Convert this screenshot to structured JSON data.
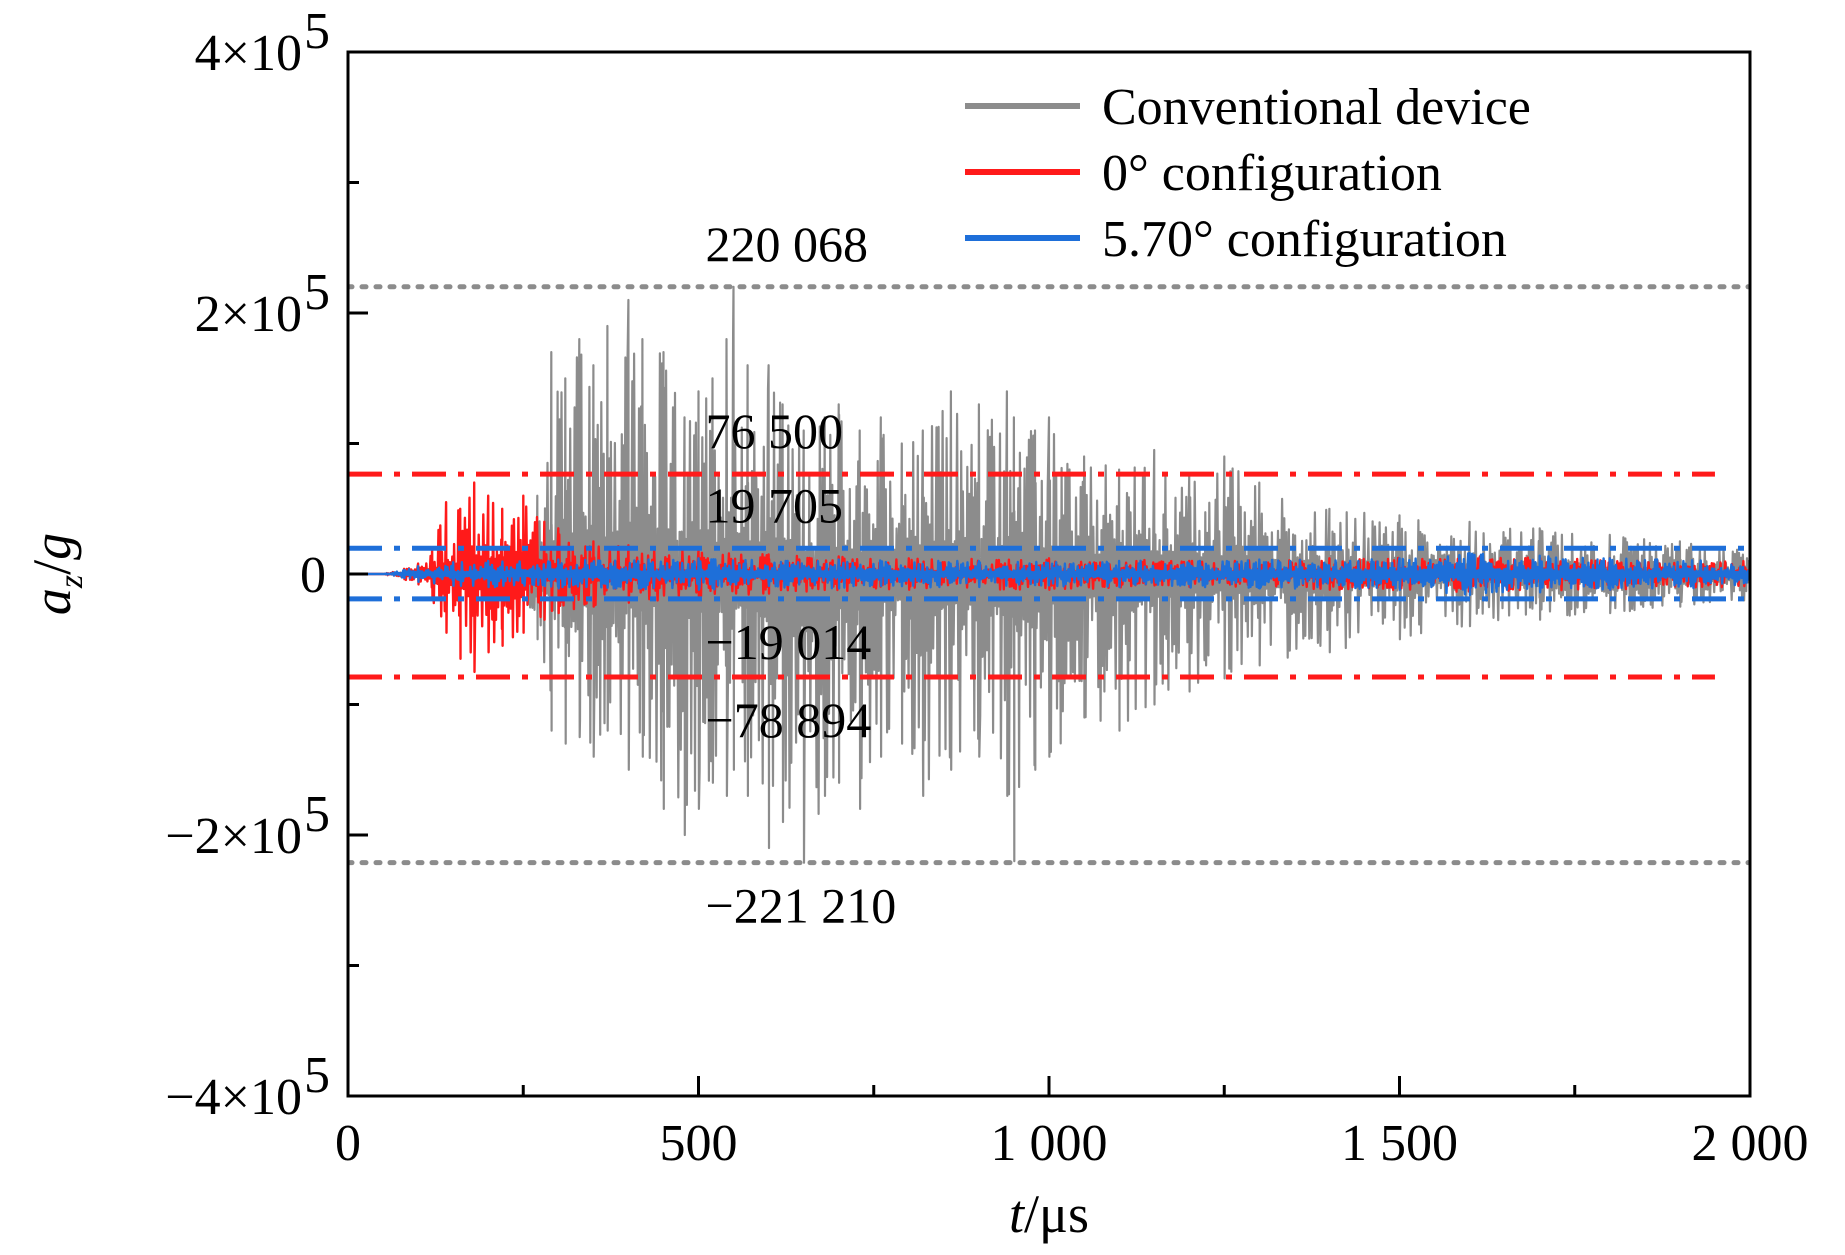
{
  "chart_data": {
    "type": "line",
    "xlabel": {
      "italic": "t",
      "rest": "/μs"
    },
    "ylabel": {
      "a": "a",
      "sub": "z",
      "rest": "/",
      "g": "g"
    },
    "xlim": [
      0,
      2000
    ],
    "ylim": [
      -400000,
      400000
    ],
    "x_ticks": [
      {
        "value": 0,
        "label": "0"
      },
      {
        "value": 500,
        "label": "500"
      },
      {
        "value": 1000,
        "label": "1 000"
      },
      {
        "value": 1500,
        "label": "1 500"
      },
      {
        "value": 2000,
        "label": "2 000"
      }
    ],
    "x_minor_ticks": [
      250,
      750,
      1250,
      1750
    ],
    "y_ticks": [
      {
        "value": 400000,
        "mant": "4×10",
        "exp": "5"
      },
      {
        "value": 200000,
        "mant": "2×10",
        "exp": "5"
      },
      {
        "value": 0,
        "mant": "0",
        "exp": ""
      },
      {
        "value": -200000,
        "mant": "−2×10",
        "exp": "5"
      },
      {
        "value": -400000,
        "mant": "−4×10",
        "exp": "5"
      }
    ],
    "y_minor_ticks": [
      300000,
      100000,
      -100000,
      -300000
    ],
    "series": [
      {
        "name": "Conventional device",
        "color": "#8c8c8c",
        "envelope": [
          [
            0,
            0,
            0
          ],
          [
            50,
            0,
            0
          ],
          [
            100,
            4000,
            -4000
          ],
          [
            150,
            5000,
            -5000
          ],
          [
            200,
            6000,
            -6000
          ],
          [
            250,
            8000,
            -8000
          ],
          [
            270,
            60000,
            -50000
          ],
          [
            290,
            170000,
            -120000
          ],
          [
            310,
            150000,
            -130000
          ],
          [
            330,
            180000,
            -125000
          ],
          [
            350,
            160000,
            -140000
          ],
          [
            370,
            190000,
            -120000
          ],
          [
            400,
            210000,
            -150000
          ],
          [
            420,
            180000,
            -140000
          ],
          [
            450,
            170000,
            -180000
          ],
          [
            480,
            120000,
            -200000
          ],
          [
            500,
            140000,
            -180000
          ],
          [
            520,
            150000,
            -160000
          ],
          [
            540,
            180000,
            -170000
          ],
          [
            550,
            220068,
            -150000
          ],
          [
            570,
            160000,
            -170000
          ],
          [
            600,
            160000,
            -210000
          ],
          [
            620,
            130000,
            -190000
          ],
          [
            650,
            110000,
            -221210
          ],
          [
            680,
            120000,
            -170000
          ],
          [
            700,
            130000,
            -160000
          ],
          [
            730,
            110000,
            -180000
          ],
          [
            760,
            120000,
            -140000
          ],
          [
            790,
            100000,
            -130000
          ],
          [
            820,
            110000,
            -170000
          ],
          [
            860,
            140000,
            -150000
          ],
          [
            900,
            130000,
            -140000
          ],
          [
            940,
            140000,
            -170000
          ],
          [
            950,
            120000,
            -220000
          ],
          [
            980,
            110000,
            -150000
          ],
          [
            1000,
            120000,
            -140000
          ],
          [
            1050,
            90000,
            -110000
          ],
          [
            1100,
            80000,
            -120000
          ],
          [
            1150,
            95000,
            -100000
          ],
          [
            1200,
            75000,
            -90000
          ],
          [
            1250,
            90000,
            -80000
          ],
          [
            1300,
            70000,
            -70000
          ],
          [
            1400,
            50000,
            -60000
          ],
          [
            1500,
            45000,
            -50000
          ],
          [
            1600,
            40000,
            -40000
          ],
          [
            1700,
            35000,
            -35000
          ],
          [
            1800,
            30000,
            -30000
          ],
          [
            1900,
            25000,
            -25000
          ],
          [
            2000,
            20000,
            -20000
          ]
        ]
      },
      {
        "name": "0° configuration",
        "color": "#ff1a1a",
        "envelope": [
          [
            0,
            0,
            0
          ],
          [
            50,
            0,
            0
          ],
          [
            80,
            4000,
            -4000
          ],
          [
            100,
            8000,
            -8000
          ],
          [
            120,
            20000,
            -20000
          ],
          [
            140,
            55000,
            -45000
          ],
          [
            160,
            50000,
            -65000
          ],
          [
            180,
            70000,
            -75000
          ],
          [
            200,
            60000,
            -60000
          ],
          [
            220,
            50000,
            -55000
          ],
          [
            250,
            60000,
            -45000
          ],
          [
            280,
            40000,
            -35000
          ],
          [
            300,
            35000,
            -30000
          ],
          [
            350,
            25000,
            -25000
          ],
          [
            400,
            22000,
            -22000
          ],
          [
            500,
            18000,
            -18000
          ],
          [
            600,
            15000,
            -15000
          ],
          [
            800,
            12000,
            -12000
          ],
          [
            1000,
            12000,
            -12000
          ],
          [
            1200,
            10000,
            -10000
          ],
          [
            1400,
            12000,
            -12000
          ],
          [
            1600,
            14000,
            -14000
          ],
          [
            1800,
            12000,
            -12000
          ],
          [
            2000,
            10000,
            -10000
          ]
        ]
      },
      {
        "name": "5.70° configuration",
        "color": "#1e6fd9",
        "envelope": [
          [
            0,
            0,
            0
          ],
          [
            50,
            0,
            0
          ],
          [
            80,
            3000,
            -3000
          ],
          [
            100,
            6000,
            -6000
          ],
          [
            150,
            9000,
            -9000
          ],
          [
            200,
            10000,
            -10000
          ],
          [
            300,
            11000,
            -11000
          ],
          [
            500,
            12000,
            -12000
          ],
          [
            700,
            11000,
            -11000
          ],
          [
            900,
            10000,
            -10000
          ],
          [
            1100,
            10000,
            -10000
          ],
          [
            1300,
            11000,
            -11000
          ],
          [
            1500,
            12000,
            -12000
          ],
          [
            1600,
            16000,
            -16000
          ],
          [
            1700,
            14000,
            -14000
          ],
          [
            1800,
            12000,
            -12000
          ],
          [
            2000,
            10000,
            -10000
          ]
        ]
      }
    ],
    "reference_lines": [
      {
        "value": 220068,
        "style": "dotted",
        "color": "#8c8c8c",
        "x_range": [
          0,
          2000
        ],
        "label": "220 068",
        "label_x": 510,
        "label_pos": "above"
      },
      {
        "value": 76500,
        "style": "dashdot",
        "color": "#ff1a1a",
        "x_range": [
          0,
          1950
        ],
        "label": "76 500",
        "label_x": 510,
        "label_pos": "above"
      },
      {
        "value": 19705,
        "style": "dashdot",
        "color": "#1e6fd9",
        "x_range": [
          0,
          2000
        ],
        "label": "19 705",
        "label_x": 510,
        "label_pos": "above"
      },
      {
        "value": -19014,
        "style": "dashdot",
        "color": "#1e6fd9",
        "x_range": [
          0,
          2000
        ],
        "label": "−19 014",
        "label_x": 510,
        "label_pos": "below"
      },
      {
        "value": -78894,
        "style": "dashdot",
        "color": "#ff1a1a",
        "x_range": [
          0,
          1950
        ],
        "label": "−78 894",
        "label_x": 510,
        "label_pos": "below"
      },
      {
        "value": -221210,
        "style": "dotted",
        "color": "#8c8c8c",
        "x_range": [
          0,
          2000
        ],
        "label": "−221 210",
        "label_x": 510,
        "label_pos": "below"
      }
    ],
    "legend": {
      "position": "top-right"
    }
  }
}
